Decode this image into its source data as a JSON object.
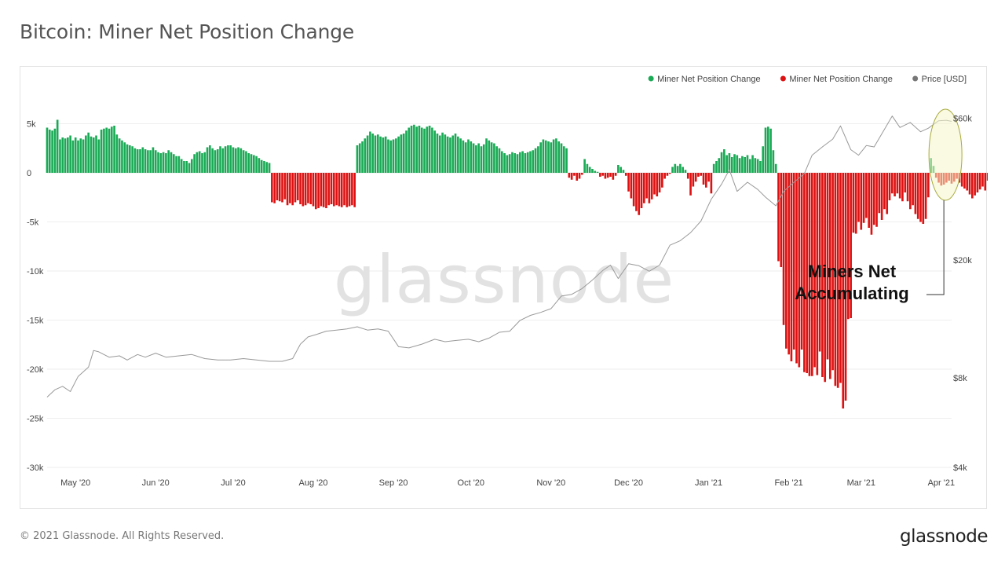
{
  "title": "Bitcoin: Miner Net Position Change",
  "footer": {
    "copyright": "© 2021 Glassnode. All Rights Reserved.",
    "logo": "glassnode"
  },
  "watermark": "glassnode",
  "colors": {
    "positive": "#1aaa55",
    "negative": "#dd1111",
    "price": "#999999",
    "price_legend": "#777777",
    "highlight_fill": "#f4f6c8",
    "highlight_stroke": "#a7a93a"
  },
  "chart_data": {
    "type": "bar",
    "title": "Bitcoin: Miner Net Position Change",
    "legend": [
      {
        "label": "Miner Net Position Change",
        "color": "#1aaa55"
      },
      {
        "label": "Miner Net Position Change",
        "color": "#dd1111"
      },
      {
        "label": "Price [USD]",
        "color": "#777777"
      }
    ],
    "legend_position": "top-right",
    "grid": true,
    "x_range": [
      "2020-04-20",
      "2021-04-05"
    ],
    "y_left": {
      "range": [
        -30000,
        6000
      ],
      "ticks": [
        5000,
        0,
        -5000,
        -10000,
        -15000,
        -20000,
        -25000,
        -30000
      ],
      "tick_labels": [
        "5k",
        "0",
        "-5k",
        "-10k",
        "-15k",
        "-20k",
        "-25k",
        "-30k"
      ]
    },
    "y_right": {
      "scale": "log",
      "range": [
        4000,
        62000
      ],
      "ticks": [
        60000,
        20000,
        8000,
        4000
      ],
      "tick_labels": [
        "$60k",
        "$20k",
        "$8k",
        "$4k"
      ]
    },
    "x_ticks": [
      {
        "date": "2020-05-01",
        "label": "May '20"
      },
      {
        "date": "2020-06-01",
        "label": "Jun '20"
      },
      {
        "date": "2020-07-01",
        "label": "Jul '20"
      },
      {
        "date": "2020-08-01",
        "label": "Aug '20"
      },
      {
        "date": "2020-09-01",
        "label": "Sep '20"
      },
      {
        "date": "2020-10-01",
        "label": "Oct '20"
      },
      {
        "date": "2020-11-01",
        "label": "Nov '20"
      },
      {
        "date": "2020-12-01",
        "label": "Dec '20"
      },
      {
        "date": "2021-01-01",
        "label": "Jan '21"
      },
      {
        "date": "2021-02-01",
        "label": "Feb '21"
      },
      {
        "date": "2021-03-01",
        "label": "Mar '21"
      },
      {
        "date": "2021-04-01",
        "label": "Apr '21"
      }
    ],
    "net_position_change": {
      "start": "2020-04-20",
      "interval_days": 1,
      "values": [
        4600,
        4400,
        4300,
        4500,
        5400,
        3400,
        3600,
        3500,
        3600,
        3800,
        3300,
        3600,
        3300,
        3500,
        3400,
        3800,
        4100,
        3700,
        3600,
        3800,
        3400,
        4400,
        4500,
        4600,
        4500,
        4700,
        4800,
        3900,
        3500,
        3300,
        3100,
        2900,
        2800,
        2700,
        2500,
        2400,
        2400,
        2600,
        2400,
        2300,
        2300,
        2600,
        2300,
        2100,
        2000,
        2100,
        2000,
        2300,
        2100,
        1900,
        1700,
        1700,
        1400,
        1200,
        1200,
        1000,
        1400,
        1900,
        2100,
        2200,
        2000,
        2100,
        2600,
        2800,
        2500,
        2300,
        2400,
        2700,
        2500,
        2700,
        2800,
        2800,
        2600,
        2500,
        2600,
        2500,
        2300,
        2200,
        2000,
        1900,
        1800,
        1700,
        1500,
        1300,
        1200,
        1100,
        1000,
        -3000,
        -3100,
        -2800,
        -2900,
        -3000,
        -2700,
        -3300,
        -3100,
        -3300,
        -3000,
        -2800,
        -3200,
        -3400,
        -3300,
        -3100,
        -3200,
        -3400,
        -3700,
        -3600,
        -3400,
        -3500,
        -3600,
        -3300,
        -3200,
        -3400,
        -3300,
        -3400,
        -3500,
        -3300,
        -3500,
        -3400,
        -3300,
        -3500,
        2800,
        3000,
        3200,
        3500,
        3800,
        4200,
        4000,
        3800,
        3900,
        3700,
        3600,
        3700,
        3400,
        3300,
        3400,
        3500,
        3700,
        3900,
        4000,
        4300,
        4600,
        4800,
        4900,
        4700,
        4800,
        4600,
        4500,
        4700,
        4800,
        4600,
        4300,
        4000,
        3800,
        4100,
        3900,
        3700,
        3600,
        3800,
        4000,
        3700,
        3500,
        3300,
        3100,
        3400,
        3200,
        3000,
        2800,
        3000,
        2700,
        2900,
        3500,
        3300,
        3100,
        3000,
        2700,
        2500,
        2200,
        2000,
        1800,
        1900,
        2100,
        2000,
        1900,
        2100,
        2200,
        2000,
        2100,
        2200,
        2300,
        2500,
        2700,
        3100,
        3400,
        3300,
        3200,
        3100,
        3400,
        3500,
        3200,
        3000,
        2700,
        2500,
        -500,
        -700,
        -300,
        -800,
        -600,
        -200,
        1400,
        900,
        600,
        400,
        200,
        100,
        -400,
        -300,
        -600,
        -500,
        -400,
        -700,
        -300,
        800,
        600,
        300,
        -300,
        -1900,
        -2600,
        -3400,
        -3900,
        -4300,
        -3600,
        -3100,
        -2600,
        -3100,
        -2700,
        -2200,
        -2400,
        -2000,
        -1500,
        -600,
        -300,
        -100,
        600,
        900,
        700,
        900,
        600,
        300,
        -600,
        -2300,
        -1400,
        -900,
        -400,
        -300,
        -1200,
        -1500,
        -900,
        -2100,
        900,
        1200,
        1500,
        2100,
        2400,
        1800,
        2000,
        1600,
        1900,
        1800,
        1500,
        1700,
        1600,
        1800,
        1400,
        1800,
        1500,
        1400,
        1200,
        2700,
        4600,
        4700,
        4500,
        2300,
        900,
        -9000,
        -9600,
        -15500,
        -17900,
        -18500,
        -19200,
        -18000,
        -19400,
        -19800,
        -18000,
        -20300,
        -20400,
        -20700,
        -20700,
        -19800,
        -20600,
        -18200,
        -20800,
        -21300,
        -19000,
        -21000,
        -20100,
        -21700,
        -21900,
        -21400,
        -24000,
        -23200,
        -14900,
        -14800,
        -6100,
        -6200,
        -5000,
        -5800,
        -5100,
        -4600,
        -5600,
        -6300,
        -5300,
        -5500,
        -4100,
        -4800,
        -3700,
        -4200,
        -2800,
        -2100,
        -2400,
        -2100,
        -2600,
        -2900,
        -2000,
        -2900,
        -3700,
        -3300,
        -4200,
        -4700,
        -5000,
        -5200,
        -4700,
        -2500,
        1500,
        700,
        -500,
        -1000,
        -1300,
        -1200,
        -1000,
        -800,
        -1100,
        -900,
        -600,
        -1000,
        -1400,
        -1600,
        -1800,
        -2200,
        -2600,
        -2300,
        -2000,
        -1700,
        -1400,
        -1800,
        -800,
        -600,
        -400,
        -900,
        -300,
        500,
        -700,
        -600,
        -400,
        -300,
        -200,
        -100,
        -200,
        500,
        800,
        1300,
        2100,
        4700,
        4200,
        3300,
        4500,
        4500,
        4600
      ]
    },
    "price_usd": {
      "points": [
        [
          "2020-04-20",
          6900
        ],
        [
          "2020-04-23",
          7300
        ],
        [
          "2020-04-26",
          7500
        ],
        [
          "2020-04-29",
          7200
        ],
        [
          "2020-05-02",
          8100
        ],
        [
          "2020-05-06",
          8700
        ],
        [
          "2020-05-08",
          9900
        ],
        [
          "2020-05-10",
          9800
        ],
        [
          "2020-05-14",
          9400
        ],
        [
          "2020-05-18",
          9500
        ],
        [
          "2020-05-21",
          9200
        ],
        [
          "2020-05-25",
          9600
        ],
        [
          "2020-05-28",
          9400
        ],
        [
          "2020-06-01",
          9700
        ],
        [
          "2020-06-05",
          9400
        ],
        [
          "2020-06-10",
          9500
        ],
        [
          "2020-06-15",
          9600
        ],
        [
          "2020-06-20",
          9300
        ],
        [
          "2020-06-25",
          9200
        ],
        [
          "2020-06-30",
          9200
        ],
        [
          "2020-07-05",
          9300
        ],
        [
          "2020-07-10",
          9200
        ],
        [
          "2020-07-15",
          9100
        ],
        [
          "2020-07-20",
          9100
        ],
        [
          "2020-07-24",
          9300
        ],
        [
          "2020-07-27",
          10400
        ],
        [
          "2020-07-30",
          11000
        ],
        [
          "2020-08-02",
          11200
        ],
        [
          "2020-08-06",
          11500
        ],
        [
          "2020-08-10",
          11600
        ],
        [
          "2020-08-14",
          11700
        ],
        [
          "2020-08-18",
          11900
        ],
        [
          "2020-08-22",
          11600
        ],
        [
          "2020-08-26",
          11700
        ],
        [
          "2020-08-30",
          11500
        ],
        [
          "2020-09-03",
          10200
        ],
        [
          "2020-09-07",
          10100
        ],
        [
          "2020-09-12",
          10400
        ],
        [
          "2020-09-17",
          10800
        ],
        [
          "2020-09-21",
          10600
        ],
        [
          "2020-09-25",
          10700
        ],
        [
          "2020-09-30",
          10800
        ],
        [
          "2020-10-04",
          10600
        ],
        [
          "2020-10-08",
          10900
        ],
        [
          "2020-10-12",
          11400
        ],
        [
          "2020-10-16",
          11500
        ],
        [
          "2020-10-20",
          12500
        ],
        [
          "2020-10-24",
          13000
        ],
        [
          "2020-10-28",
          13300
        ],
        [
          "2020-11-01",
          13700
        ],
        [
          "2020-11-05",
          15100
        ],
        [
          "2020-11-09",
          15300
        ],
        [
          "2020-11-13",
          16000
        ],
        [
          "2020-11-17",
          17100
        ],
        [
          "2020-11-21",
          18400
        ],
        [
          "2020-11-24",
          19200
        ],
        [
          "2020-11-27",
          17300
        ],
        [
          "2020-12-01",
          19400
        ],
        [
          "2020-12-05",
          19100
        ],
        [
          "2020-12-09",
          18300
        ],
        [
          "2020-12-13",
          19200
        ],
        [
          "2020-12-17",
          22400
        ],
        [
          "2020-12-21",
          23200
        ],
        [
          "2020-12-25",
          24700
        ],
        [
          "2020-12-29",
          27000
        ],
        [
          "2021-01-02",
          32000
        ],
        [
          "2021-01-06",
          36000
        ],
        [
          "2021-01-09",
          40200
        ],
        [
          "2021-01-12",
          34000
        ],
        [
          "2021-01-16",
          36500
        ],
        [
          "2021-01-20",
          34500
        ],
        [
          "2021-01-23",
          32500
        ],
        [
          "2021-01-27",
          30400
        ],
        [
          "2021-01-30",
          34000
        ],
        [
          "2021-02-03",
          36500
        ],
        [
          "2021-02-07",
          39000
        ],
        [
          "2021-02-10",
          45000
        ],
        [
          "2021-02-14",
          48000
        ],
        [
          "2021-02-18",
          51000
        ],
        [
          "2021-02-21",
          56500
        ],
        [
          "2021-02-25",
          47000
        ],
        [
          "2021-02-28",
          45000
        ],
        [
          "2021-03-03",
          48500
        ],
        [
          "2021-03-06",
          48000
        ],
        [
          "2021-03-10",
          55000
        ],
        [
          "2021-03-13",
          61000
        ],
        [
          "2021-03-16",
          55800
        ],
        [
          "2021-03-20",
          58000
        ],
        [
          "2021-03-24",
          54000
        ],
        [
          "2021-03-27",
          55500
        ],
        [
          "2021-03-31",
          58800
        ],
        [
          "2021-04-03",
          59000
        ],
        [
          "2021-04-05",
          58500
        ]
      ]
    },
    "annotations": [
      {
        "text_lines": [
          "Miners Net",
          "Accumulating"
        ],
        "target_range": [
          "2021-03-30",
          "2021-04-05"
        ]
      }
    ]
  }
}
